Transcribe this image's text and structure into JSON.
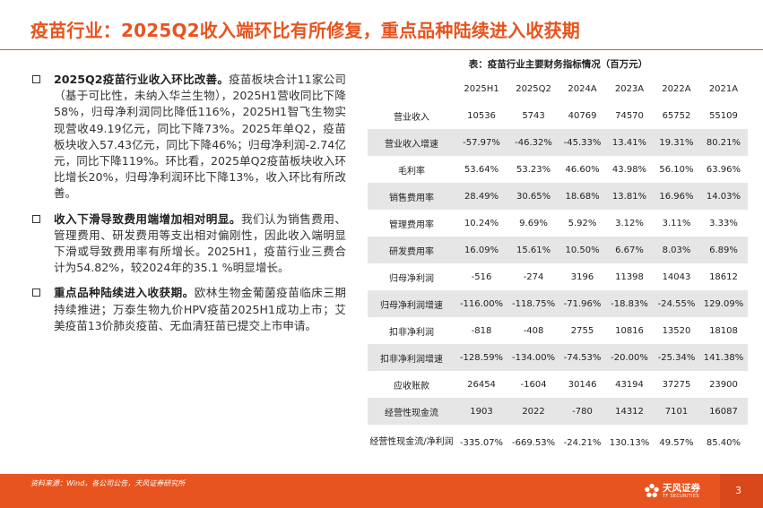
{
  "title": "疫苗行业：2025Q2收入端环比有所修复，重点品种陆续进入收获期",
  "bullets": [
    {
      "head": "2025Q2疫苗行业收入环比改善。",
      "body": "疫苗板块合计11家公司（基于可比性，未纳入华兰生物），2025H1营收同比下降58%，归母净利润同比降低116%，2025H1智飞生物实现营收49.19亿元，同比下降73%。2025年单Q2，疫苗板块收入57.43亿元，同比下降46%；归母净利润-2.74亿元，同比下降119%。环比看，2025单Q2疫苗板块收入环比增长20%，归母净利润环比下降13%，收入环比有所改善。"
    },
    {
      "head": "收入下滑导致费用端增加相对明显。",
      "body": "我们认为销售费用、管理费用、研发费用等支出相对偏刚性，因此收入端明显下滑或导致费用率有所增长。2025H1，疫苗行业三费合计为54.82%，较2024年的35.1 %明显增长。"
    },
    {
      "head": "重点品种陆续进入收获期。",
      "body": "欧林生物金葡菌疫苗临床三期持续推进；万泰生物九价HPV疫苗2025H1成功上市；艾美疫苗13价肺炎疫苗、无血清狂苗已提交上市申请。"
    }
  ],
  "table": {
    "title": "表：疫苗行业主要财务指标情况（百万元）",
    "columns": [
      "",
      "2025H1",
      "2025Q2",
      "2024A",
      "2023A",
      "2022A",
      "2021A"
    ],
    "rows": [
      [
        "营业收入",
        "10536",
        "5743",
        "40769",
        "74570",
        "65752",
        "55109"
      ],
      [
        "营业收入增速",
        "-57.97%",
        "-46.32%",
        "-45.33%",
        "13.41%",
        "19.31%",
        "80.21%"
      ],
      [
        "毛利率",
        "53.64%",
        "53.23%",
        "46.60%",
        "43.98%",
        "56.10%",
        "63.96%"
      ],
      [
        "销售费用率",
        "28.49%",
        "30.65%",
        "18.68%",
        "13.81%",
        "16.96%",
        "14.03%"
      ],
      [
        "管理费用率",
        "10.24%",
        "9.69%",
        "5.92%",
        "3.12%",
        "3.11%",
        "3.33%"
      ],
      [
        "研发费用率",
        "16.09%",
        "15.61%",
        "10.50%",
        "6.67%",
        "8.03%",
        "6.89%"
      ],
      [
        "归母净利润",
        "-516",
        "-274",
        "3196",
        "11398",
        "14043",
        "18612"
      ],
      [
        "归母净利润增速",
        "-116.00%",
        "-118.75%",
        "-71.96%",
        "-18.83%",
        "-24.55%",
        "129.09%"
      ],
      [
        "扣非净利润",
        "-818",
        "-408",
        "2755",
        "10816",
        "13520",
        "18108"
      ],
      [
        "扣非净利润增速",
        "-128.59%",
        "-134.00%",
        "-74.53%",
        "-20.00%",
        "-25.34%",
        "141.38%"
      ],
      [
        "应收账款",
        "26454",
        "-1604",
        "30146",
        "43194",
        "37275",
        "23900"
      ],
      [
        "经营性现金流",
        "1903",
        "2022",
        "-780",
        "14312",
        "7101",
        "16087"
      ],
      [
        "经营性现金流/净利润",
        "-335.07%",
        "-669.53%",
        "-24.21%",
        "130.13%",
        "49.57%",
        "85.40%"
      ]
    ]
  },
  "footer": {
    "source": "资料来源：Wind，各公司公告，天风证券研究所",
    "logo_text": "天风证券",
    "logo_sub": "TF SECURITIES",
    "page_number": "3"
  },
  "colors": {
    "accent": "#e8541f",
    "table_stripe": "#e6e6e6"
  }
}
